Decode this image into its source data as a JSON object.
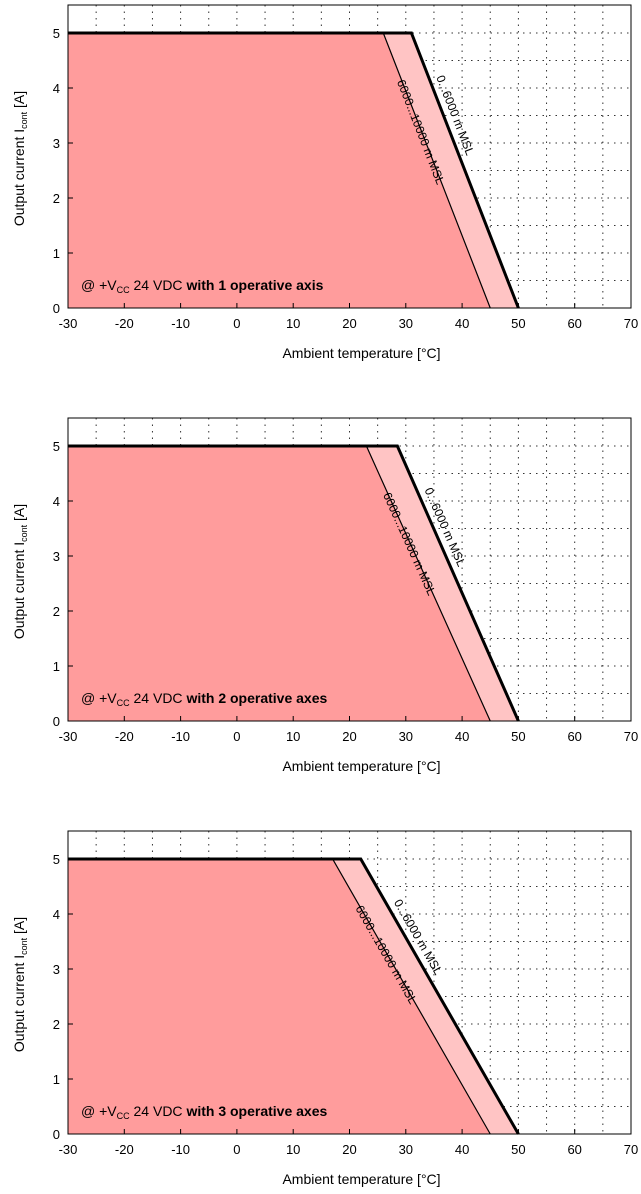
{
  "chart_data": [
    {
      "type": "area",
      "xlabel": "Ambient temperature [°C]",
      "ylabel": "Output current I",
      "ylabel_sub": "cont",
      "ylabel_unit": " [A]",
      "xlim": [
        -30,
        70
      ],
      "ylim": [
        0,
        5
      ],
      "x_ticks": [
        "-30",
        "-20",
        "-10",
        "0",
        "10",
        "20",
        "30",
        "40",
        "50",
        "60",
        "70"
      ],
      "y_ticks": [
        "0",
        "1",
        "2",
        "3",
        "4",
        "5"
      ],
      "grid": true,
      "annotation": {
        "prefix": "@ +V",
        "sub": "CC",
        "mid": " 24 VDC ",
        "bold": "with 1 operative axis"
      },
      "series": [
        {
          "name": "0...6000 m MSL",
          "x": [
            -30,
            31,
            50
          ],
          "y": [
            5,
            5,
            0
          ],
          "fill": "#ffc4c4",
          "stroke": "#000000",
          "stroke_width": "bold"
        },
        {
          "name": "6000...10000 m MSL",
          "x": [
            -30,
            26,
            45
          ],
          "y": [
            5,
            5,
            0
          ],
          "fill": "#ff9c9c",
          "stroke": "#000000",
          "stroke_width": "thin"
        }
      ]
    },
    {
      "type": "area",
      "xlabel": "Ambient temperature [°C]",
      "ylabel": "Output current I",
      "ylabel_sub": "cont",
      "ylabel_unit": " [A]",
      "xlim": [
        -30,
        70
      ],
      "ylim": [
        0,
        5
      ],
      "x_ticks": [
        "-30",
        "-20",
        "-10",
        "0",
        "10",
        "20",
        "30",
        "40",
        "50",
        "60",
        "70"
      ],
      "y_ticks": [
        "0",
        "1",
        "2",
        "3",
        "4",
        "5"
      ],
      "grid": true,
      "annotation": {
        "prefix": "@ +V",
        "sub": "CC",
        "mid": " 24 VDC ",
        "bold": "with 2 operative axes"
      },
      "series": [
        {
          "name": "0...6000 m MSL",
          "x": [
            -30,
            28.5,
            50
          ],
          "y": [
            5,
            5,
            0
          ],
          "fill": "#ffc4c4",
          "stroke": "#000000",
          "stroke_width": "bold"
        },
        {
          "name": "6000...10000 m MSL",
          "x": [
            -30,
            23,
            45
          ],
          "y": [
            5,
            5,
            0
          ],
          "fill": "#ff9c9c",
          "stroke": "#000000",
          "stroke_width": "thin"
        }
      ]
    },
    {
      "type": "area",
      "xlabel": "Ambient temperature [°C]",
      "ylabel": "Output current I",
      "ylabel_sub": "cont",
      "ylabel_unit": " [A]",
      "xlim": [
        -30,
        70
      ],
      "ylim": [
        0,
        5
      ],
      "x_ticks": [
        "-30",
        "-20",
        "-10",
        "0",
        "10",
        "20",
        "30",
        "40",
        "50",
        "60",
        "70"
      ],
      "y_ticks": [
        "0",
        "1",
        "2",
        "3",
        "4",
        "5"
      ],
      "grid": true,
      "annotation": {
        "prefix": "@ +V",
        "sub": "CC",
        "mid": " 24 VDC ",
        "bold": "with 3 operative axes"
      },
      "series": [
        {
          "name": "0...6000 m MSL",
          "x": [
            -30,
            22,
            50
          ],
          "y": [
            5,
            5,
            0
          ],
          "fill": "#ffc4c4",
          "stroke": "#000000",
          "stroke_width": "bold"
        },
        {
          "name": "6000...10000 m MSL",
          "x": [
            -30,
            17,
            45
          ],
          "y": [
            5,
            5,
            0
          ],
          "fill": "#ff9c9c",
          "stroke": "#000000",
          "stroke_width": "thin"
        }
      ]
    }
  ]
}
